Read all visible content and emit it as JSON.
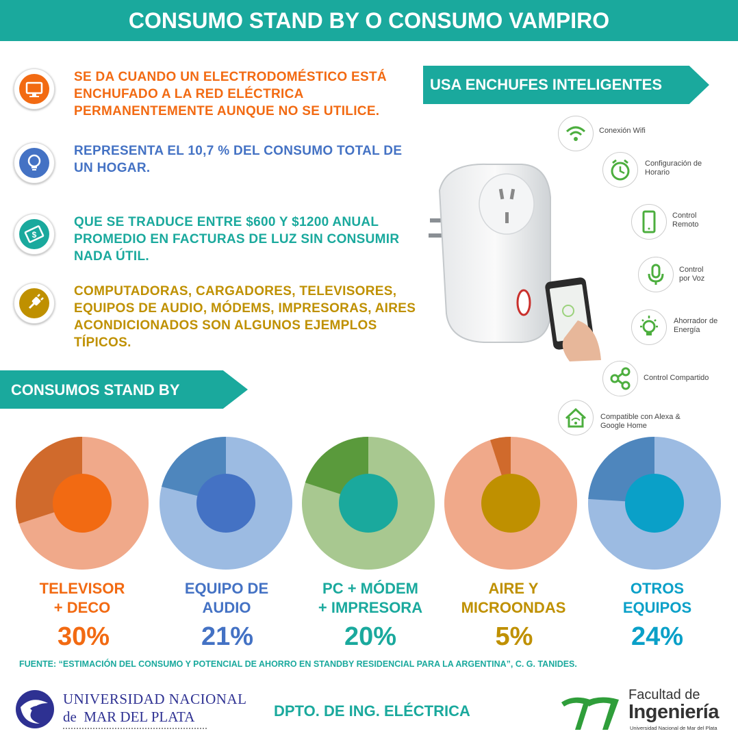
{
  "header": {
    "title": "CONSUMO STAND BY O CONSUMO VAMPIRO"
  },
  "colors": {
    "teal": "#1aa99d",
    "orange": "#f26a12",
    "blue": "#4472c4",
    "teal_text": "#1aa99d",
    "gold": "#bf9000"
  },
  "info": [
    {
      "icon": "monitor-icon",
      "text": "SE DA CUANDO UN ELECTRODOMÉSTICO ESTÁ ENCHUFADO A LA RED ELÉCTRICA PERMANENTEMENTE AUNQUE NO SE UTILICE.",
      "color": "#f26a12"
    },
    {
      "icon": "lightbulb-icon",
      "text": "REPRESENTA EL 10,7 % DEL CONSUMO TOTAL DE UN HOGAR.",
      "color": "#4472c4"
    },
    {
      "icon": "money-icon",
      "text": "QUE SE TRADUCE ENTRE $600 Y $1200 ANUAL PROMEDIO EN FACTURAS DE LUZ SIN CONSUMIR NADA ÚTIL.",
      "color": "#1aa99d"
    },
    {
      "icon": "plug-icon",
      "text": "COMPUTADORAS, CARGADORES, TELEVISORES, EQUIPOS DE AUDIO, MÓDEMS, IMPRESORAS, AIRES ACONDICIONADOS SON ALGUNOS EJEMPLOS TÍPICOS.",
      "color": "#bf9000"
    }
  ],
  "smart": {
    "title": "USA ENCHUFES INTELIGENTES",
    "features": [
      {
        "icon": "wifi-icon",
        "label": "Conexión Wifi"
      },
      {
        "icon": "clock-icon",
        "label": "Configuración de Horario"
      },
      {
        "icon": "phone-icon",
        "label": "Control Remoto"
      },
      {
        "icon": "microphone-icon",
        "label": "Control por Voz"
      },
      {
        "icon": "bulb-icon",
        "label": "Ahorrador de Energía"
      },
      {
        "icon": "share-icon",
        "label": "Control Compartido"
      },
      {
        "icon": "home-icon",
        "label": "Compatible con Alexa & Google Home"
      }
    ]
  },
  "standby": {
    "title": "CONSUMOS STAND BY"
  },
  "chart_data": {
    "type": "pie",
    "items": [
      {
        "label_line1": "TELEVISOR",
        "label_line2": "+ DECO",
        "pct_text": "30%",
        "value": 30,
        "color": "#f26a12",
        "slice": "#d06a2c",
        "ring": "#f0a98a"
      },
      {
        "label_line1": "EQUIPO DE",
        "label_line2": "AUDIO",
        "pct_text": "21%",
        "value": 21,
        "color": "#4472c4",
        "slice": "#4e86bd",
        "ring": "#9cbbe2"
      },
      {
        "label_line1": "PC + MÓDEM",
        "label_line2": "+ IMPRESORA",
        "pct_text": "20%",
        "value": 20,
        "color": "#1aa99d",
        "slice": "#5a9a3c",
        "ring": "#a8c890"
      },
      {
        "label_line1": "AIRE Y",
        "label_line2": "MICROONDAS",
        "pct_text": "5%",
        "value": 5,
        "color": "#bf9000",
        "slice": "#d06a2c",
        "ring": "#f0a98a"
      },
      {
        "label_line1": "OTROS",
        "label_line2": "EQUIPOS",
        "pct_text": "24%",
        "value": 24,
        "color": "#0aa0c8",
        "slice": "#4e86bd",
        "ring": "#9cbbe2"
      }
    ]
  },
  "footer": {
    "source": "FUENTE: “ESTIMACIÓN DEL CONSUMO Y POTENCIAL DE AHORRO EN STANDBY RESIDENCIAL PARA LA ARGENTINA”, C. G. TANIDES.",
    "dept": "DPTO. DE ING. ELÉCTRICA",
    "univ_line1": "UNIVERSIDAD NACIONAL",
    "univ_line2": "de  MAR DEL PLATA",
    "fac_line1": "Facultad de",
    "fac_line2": "Ingeniería",
    "fac_line3": "Universidad Nacional de Mar del Plata"
  }
}
